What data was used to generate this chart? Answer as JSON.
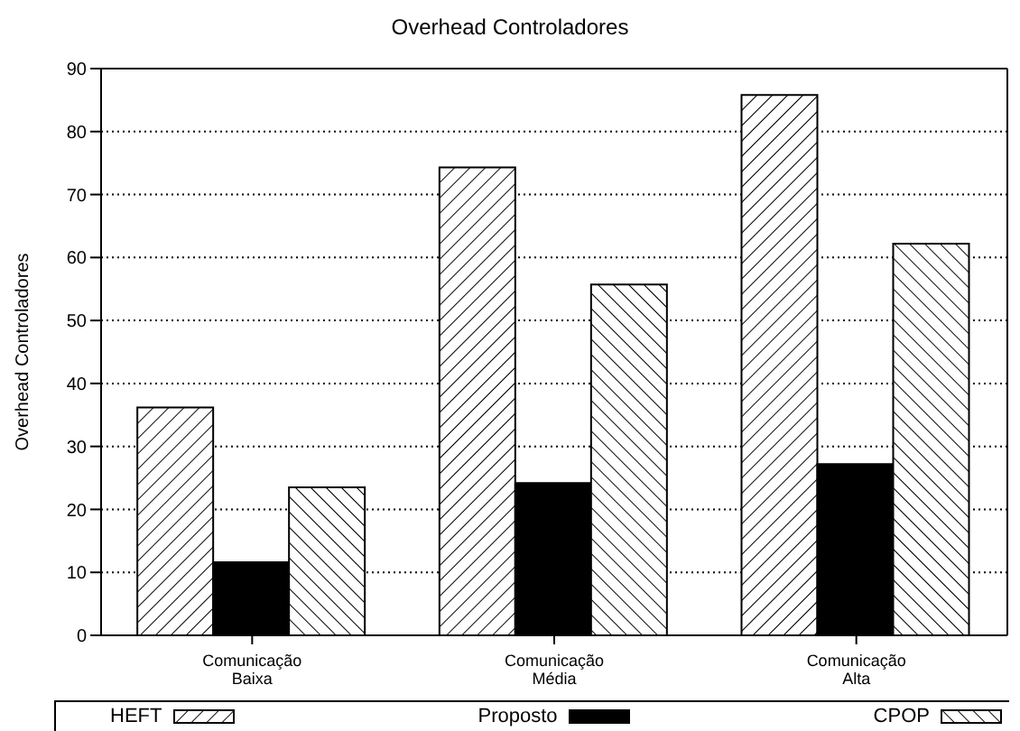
{
  "chart_data": {
    "type": "bar",
    "title": "Overhead Controladores",
    "ylabel": "Overhead Controladores",
    "categories": [
      "Comunicação\nBaixa",
      "Comunicação\nMédia",
      "Comunicação\nAlta"
    ],
    "series": [
      {
        "name": "HEFT",
        "color": "#000000",
        "values": [
          36.2,
          74.3,
          85.8
        ]
      },
      {
        "name": "Proposto",
        "color": "#000000",
        "values": [
          11.6,
          24.2,
          27.2
        ]
      },
      {
        "name": "CPOP",
        "color": "#000000",
        "values": [
          23.5,
          55.7,
          62.2
        ]
      }
    ],
    "ylim": [
      0,
      90
    ],
    "yticks": [
      0,
      10,
      20,
      30,
      40,
      50,
      60,
      70,
      80,
      90
    ],
    "grid": "y",
    "legend": "bottom"
  }
}
